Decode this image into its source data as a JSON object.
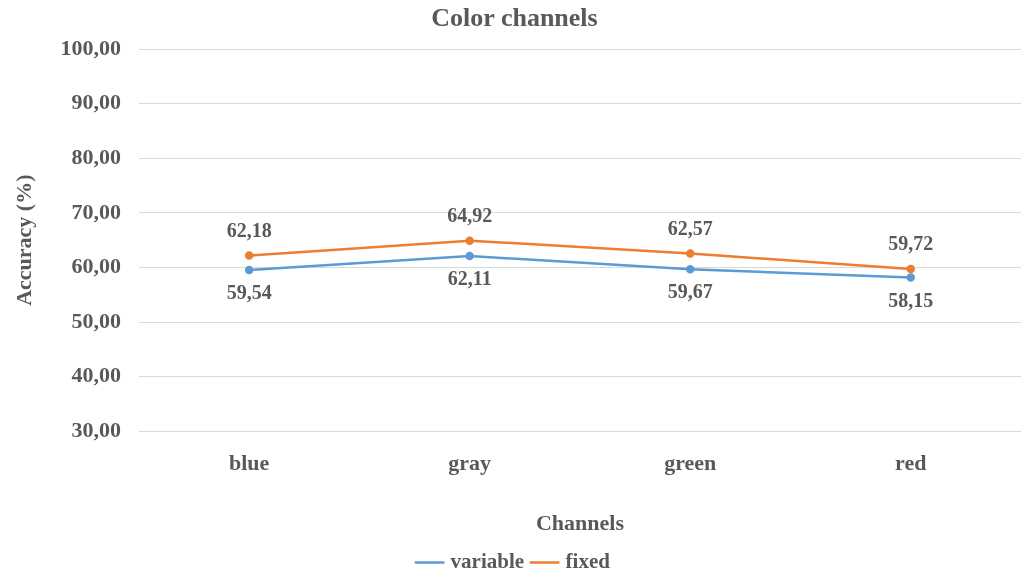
{
  "chart_data": {
    "type": "line",
    "title": "Color channels",
    "xlabel": "Channels",
    "ylabel": "Accuracy (%)",
    "categories": [
      "blue",
      "gray",
      "green",
      "red"
    ],
    "series": [
      {
        "name": "variable",
        "color": "#5b9bd5",
        "values": [
          59.54,
          62.11,
          59.67,
          58.15
        ],
        "value_labels": [
          "59,54",
          "62,11",
          "59,67",
          "58,15"
        ]
      },
      {
        "name": "fixed",
        "color": "#ed7d31",
        "values": [
          62.18,
          64.92,
          62.57,
          59.72
        ],
        "value_labels": [
          "62,18",
          "64,92",
          "62,57",
          "59,72"
        ]
      }
    ],
    "ylim": [
      30,
      100
    ],
    "yticks": [
      {
        "value": 30,
        "label": "30,00"
      },
      {
        "value": 40,
        "label": "40,00"
      },
      {
        "value": 50,
        "label": "50,00"
      },
      {
        "value": 60,
        "label": "60,00"
      },
      {
        "value": 70,
        "label": "70,00"
      },
      {
        "value": 80,
        "label": "80,00"
      },
      {
        "value": 90,
        "label": "90,00"
      },
      {
        "value": 100,
        "label": "100,00"
      }
    ],
    "grid": "y",
    "legend": "bottom",
    "marker": "circle",
    "line_style": "solid"
  }
}
